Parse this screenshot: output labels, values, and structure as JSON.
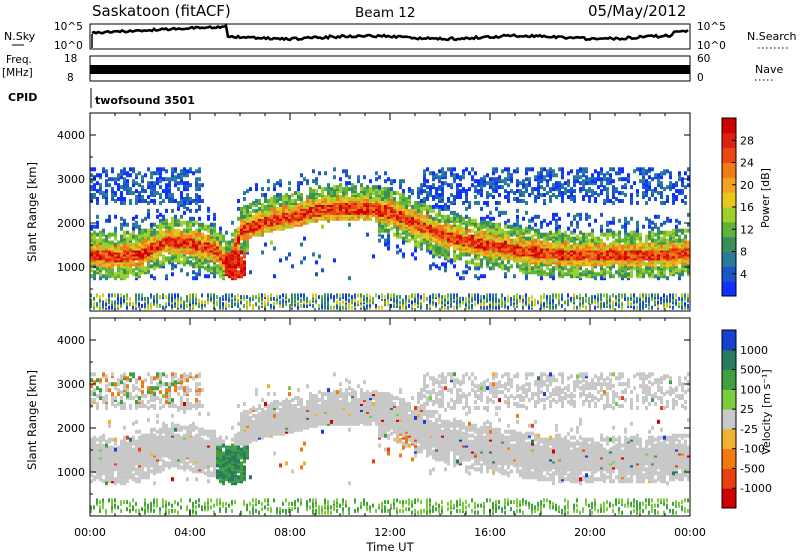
{
  "header": {
    "title": "Saskatoon (fitACF)",
    "beam": "Beam 12",
    "date": "05/May/2012"
  },
  "aux": {
    "nsky_label": "N.Sky",
    "nsearch_label": "N.Search",
    "nsky_ticks": [
      "10^5",
      "10^0"
    ],
    "nsearch_ticks": [
      "10^5",
      "10^0"
    ],
    "freq_label_1": "Freq.",
    "freq_label_2": "[MHz]",
    "freq_ticks": [
      "18",
      "8"
    ],
    "nave_label": "Nave",
    "nave_ticks": [
      "60",
      "0"
    ],
    "cpid_label": "CPID",
    "cpid_value": "twofsound 3501"
  },
  "colors": {
    "power": [
      "#1030ff",
      "#1a56c8",
      "#2a7a9a",
      "#3a8e5a",
      "#5fb33a",
      "#9fd02a",
      "#e8c81a",
      "#f5a020",
      "#f07a18",
      "#e84a12",
      "#e02010",
      "#d00000"
    ],
    "velocity": [
      "#1840d0",
      "#2a7a60",
      "#40a040",
      "#7ccc40",
      "#c8c8c8",
      "#f0b030",
      "#f07a10",
      "#e84010",
      "#d00000"
    ]
  },
  "chart_data": [
    {
      "type": "heatmap",
      "name": "power",
      "ylabel": "Slant Range [km]",
      "yticks": [
        "1000",
        "2000",
        "3000",
        "4000"
      ],
      "ylim": [
        0,
        4500
      ],
      "xlim": [
        0,
        24
      ],
      "colorbar_label": "Power [dB]",
      "colorbar_ticks": [
        "4",
        "8",
        "12",
        "16",
        "20",
        "24",
        "28"
      ],
      "colorbar_range": [
        0,
        32
      ],
      "band_centre_km": [
        [
          0,
          1250
        ],
        [
          1,
          1200
        ],
        [
          2,
          1250
        ],
        [
          3,
          1550
        ],
        [
          4,
          1500
        ],
        [
          5,
          1350
        ],
        [
          5.5,
          1000
        ],
        [
          6,
          1800
        ],
        [
          7,
          2000
        ],
        [
          8,
          2100
        ],
        [
          9,
          2250
        ],
        [
          10,
          2300
        ],
        [
          11,
          2300
        ],
        [
          12,
          2200
        ],
        [
          13,
          1950
        ],
        [
          14,
          1700
        ],
        [
          15,
          1550
        ],
        [
          16,
          1450
        ],
        [
          17,
          1350
        ],
        [
          18,
          1300
        ],
        [
          19,
          1250
        ],
        [
          20,
          1250
        ],
        [
          21,
          1250
        ],
        [
          22,
          1250
        ],
        [
          23,
          1250
        ],
        [
          24,
          1300
        ]
      ]
    },
    {
      "type": "heatmap",
      "name": "velocity",
      "ylabel": "Slant Range [km]",
      "yticks": [
        "1000",
        "2000",
        "3000",
        "4000"
      ],
      "ylim": [
        0,
        4500
      ],
      "xlim": [
        0,
        24
      ],
      "xlabel": "Time UT",
      "xticks": [
        "00:00",
        "04:00",
        "08:00",
        "12:00",
        "16:00",
        "20:00",
        "00:00"
      ],
      "colorbar_label": "Velocity [m s⁻¹]",
      "colorbar_ticks": [
        "1000",
        "500",
        "100",
        "25",
        "-25",
        "-100",
        "-500",
        "-1000"
      ]
    }
  ]
}
